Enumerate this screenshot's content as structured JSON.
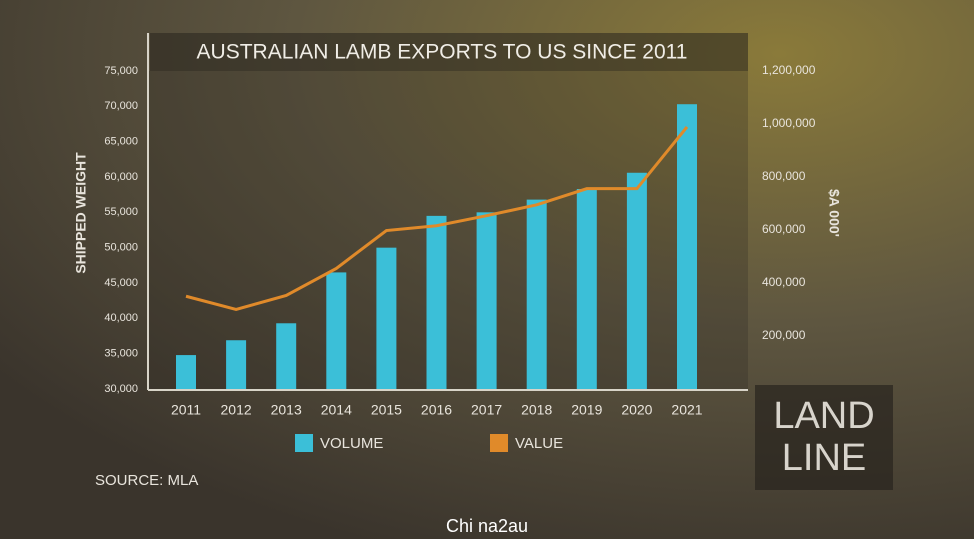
{
  "chart_data": {
    "type": "bar-line",
    "title": "AUSTRALIAN LAMB EXPORTS TO US SINCE 2011",
    "ylabel": "SHIPPED WEIGHT",
    "y2label": "$A 000'",
    "categories": [
      "2011",
      "2012",
      "2013",
      "2014",
      "2015",
      "2016",
      "2017",
      "2018",
      "2019",
      "2020",
      "2021"
    ],
    "series": [
      {
        "name": "VOLUME",
        "kind": "bar",
        "color": "#3bbfd8",
        "values": [
          34800,
          36900,
          39300,
          46500,
          50000,
          54500,
          55000,
          56800,
          58300,
          60600,
          70300
        ]
      },
      {
        "name": "VALUE",
        "kind": "line",
        "axis": "y2",
        "color": "#e08a2a",
        "values": [
          350000,
          300000,
          353000,
          455000,
          598000,
          616000,
          654000,
          695000,
          756000,
          756000,
          989000
        ]
      }
    ],
    "ylim": [
      30000,
      75000
    ],
    "yticks": [
      {
        "value": 30000,
        "label": "30,000"
      },
      {
        "value": 35000,
        "label": "35,000"
      },
      {
        "value": 40000,
        "label": "40,000"
      },
      {
        "value": 45000,
        "label": "45,000"
      },
      {
        "value": 50000,
        "label": "50,000"
      },
      {
        "value": 55000,
        "label": "55,000"
      },
      {
        "value": 60000,
        "label": "60,000"
      },
      {
        "value": 65000,
        "label": "65,000"
      },
      {
        "value": 70000,
        "label": "70,000"
      },
      {
        "value": 75000,
        "label": "75,000"
      }
    ],
    "y2lim": [
      0,
      1200000
    ],
    "y2ticks": [
      {
        "value": 200000,
        "label": "200,000"
      },
      {
        "value": 400000,
        "label": "400,000"
      },
      {
        "value": 600000,
        "label": "600,000"
      },
      {
        "value": 800000,
        "label": "800,000"
      },
      {
        "value": 1000000,
        "label": "1,000,000"
      },
      {
        "value": 1200000,
        "label": "1,200,000"
      }
    ],
    "source": "SOURCE: MLA"
  },
  "logo": [
    "LAND",
    "LINE"
  ],
  "watermark": "Chi na2au"
}
